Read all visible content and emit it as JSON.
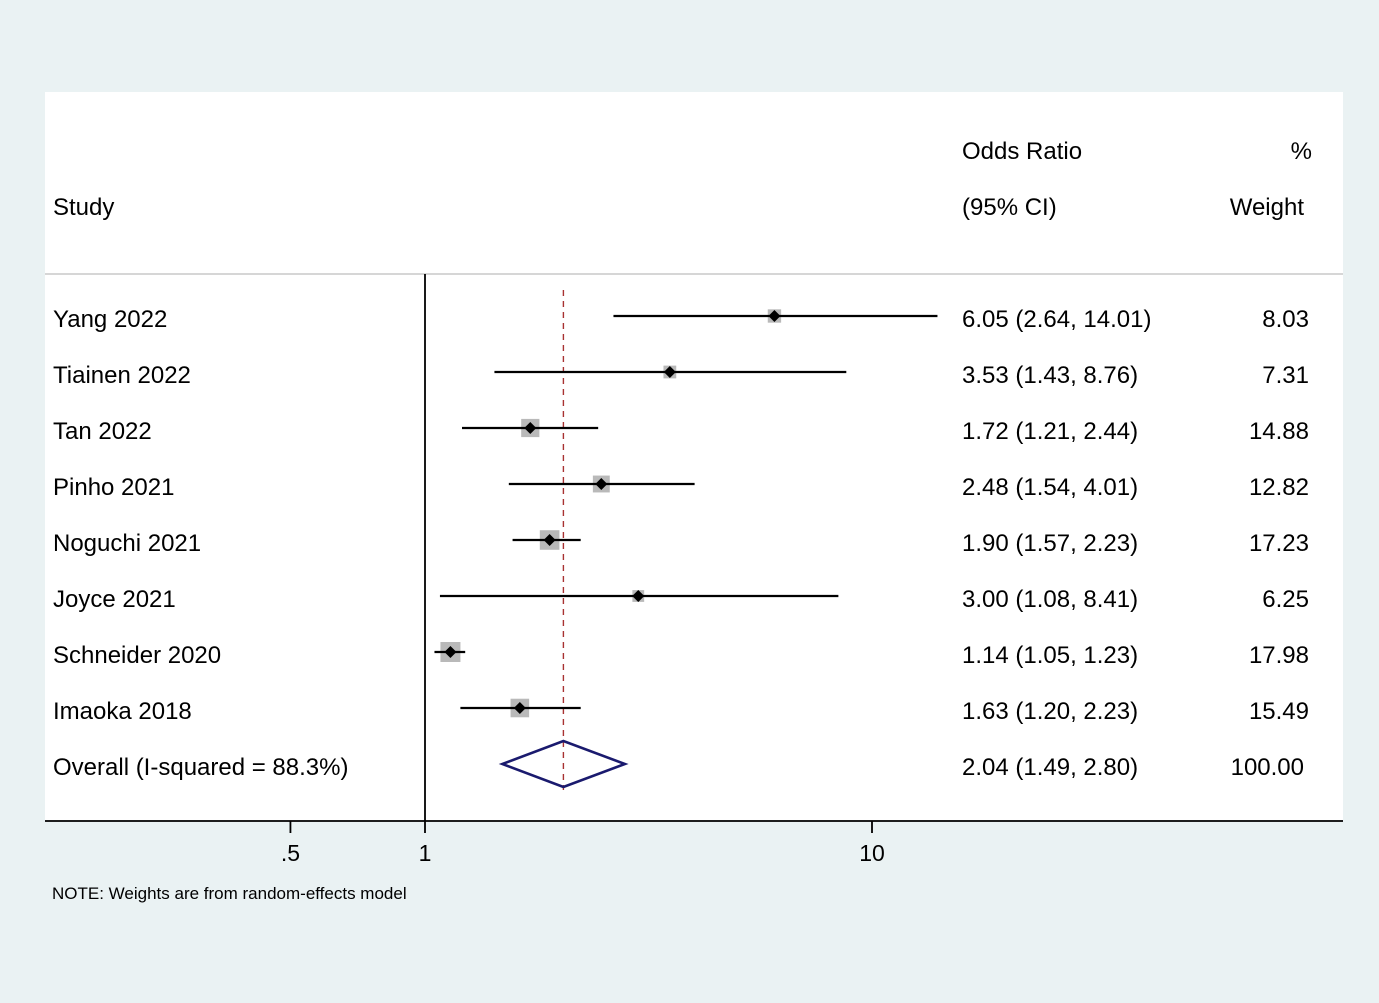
{
  "chart_data": {
    "type": "forest",
    "header": {
      "study": "Study",
      "or_line1": "Odds Ratio",
      "or_line2": "(95% CI)",
      "w_line1": "%",
      "w_line2": "Weight"
    },
    "studies": [
      {
        "label": "Yang 2022",
        "or": 6.05,
        "lo": 2.64,
        "hi": 14.01,
        "ci_text": "6.05 (2.64, 14.01)",
        "weight": 8.03,
        "weight_text": "8.03"
      },
      {
        "label": "Tiainen 2022",
        "or": 3.53,
        "lo": 1.43,
        "hi": 8.76,
        "ci_text": "3.53 (1.43, 8.76)",
        "weight": 7.31,
        "weight_text": "7.31"
      },
      {
        "label": "Tan 2022",
        "or": 1.72,
        "lo": 1.21,
        "hi": 2.44,
        "ci_text": "1.72 (1.21, 2.44)",
        "weight": 14.88,
        "weight_text": "14.88"
      },
      {
        "label": "Pinho 2021",
        "or": 2.48,
        "lo": 1.54,
        "hi": 4.01,
        "ci_text": "2.48 (1.54, 4.01)",
        "weight": 12.82,
        "weight_text": "12.82"
      },
      {
        "label": "Noguchi 2021",
        "or": 1.9,
        "lo": 1.57,
        "hi": 2.23,
        "ci_text": "1.90 (1.57, 2.23)",
        "weight": 17.23,
        "weight_text": "17.23"
      },
      {
        "label": "Joyce 2021",
        "or": 3.0,
        "lo": 1.08,
        "hi": 8.41,
        "ci_text": "3.00 (1.08, 8.41)",
        "weight": 6.25,
        "weight_text": "6.25"
      },
      {
        "label": "Schneider 2020",
        "or": 1.14,
        "lo": 1.05,
        "hi": 1.23,
        "ci_text": "1.14 (1.05, 1.23)",
        "weight": 17.98,
        "weight_text": "17.98"
      },
      {
        "label": "Imaoka 2018",
        "or": 1.63,
        "lo": 1.2,
        "hi": 2.23,
        "ci_text": "1.63 (1.20, 2.23)",
        "weight": 15.49,
        "weight_text": "15.49"
      }
    ],
    "overall": {
      "label": "Overall (I-squared = 88.3%)",
      "or": 2.04,
      "lo": 1.49,
      "hi": 2.8,
      "ci_text": "2.04 (1.49, 2.80)",
      "weight_text": "100.00"
    },
    "x_scale": "log",
    "ticks": [
      {
        "value": 0.5,
        "label": ".5"
      },
      {
        "value": 1,
        "label": "1"
      },
      {
        "value": 10,
        "label": "10"
      }
    ],
    "null_value": 1,
    "note": "NOTE: Weights are from random-effects model",
    "colors": {
      "background": "#eaf2f3",
      "panel": "#ffffff",
      "weight_box": "#b9b9b9",
      "diamond": "#1a1a6e",
      "ref_line": "#a83232",
      "line": "#000000",
      "divider": "#c8c8c8"
    }
  }
}
